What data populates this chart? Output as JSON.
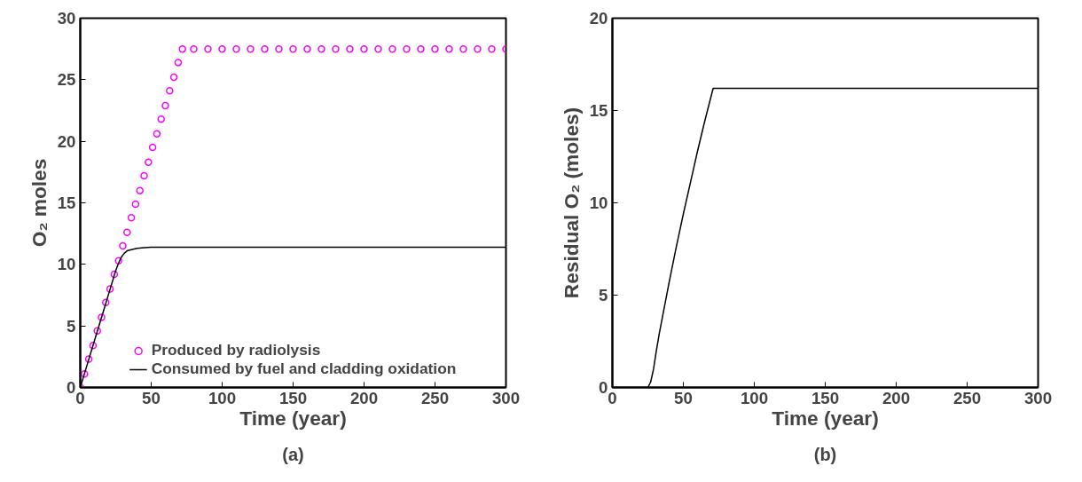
{
  "chart_data": [
    {
      "type": "line",
      "xlabel": "Time (year)",
      "ylabel": "O₂ moles",
      "annotations": [
        "(a)"
      ],
      "xlim": [
        0,
        300
      ],
      "ylim": [
        0,
        30
      ],
      "xticks": [
        0,
        50,
        100,
        150,
        200,
        250,
        300
      ],
      "yticks": [
        0,
        5,
        10,
        15,
        20,
        25,
        30
      ],
      "grid": false,
      "legend": "bottom",
      "series": [
        {
          "name": "Produced by radiolysis",
          "type": "scatter",
          "marker": "circle",
          "color": "#ff00ff",
          "x": [
            0,
            3,
            6,
            9,
            12,
            15,
            18,
            21,
            24,
            27,
            30,
            33,
            36,
            39,
            42,
            45,
            48,
            51,
            54,
            57,
            60,
            63,
            66,
            69,
            72,
            80,
            90,
            100,
            110,
            120,
            130,
            140,
            150,
            160,
            170,
            180,
            190,
            200,
            210,
            220,
            230,
            240,
            250,
            260,
            270,
            280,
            290,
            300
          ],
          "values": [
            0,
            1.1,
            2.3,
            3.4,
            4.6,
            5.7,
            6.9,
            8.0,
            9.2,
            10.3,
            11.5,
            12.6,
            13.8,
            14.9,
            16.0,
            17.2,
            18.3,
            19.5,
            20.6,
            21.8,
            22.9,
            24.1,
            25.2,
            26.4,
            27.5,
            27.5,
            27.5,
            27.5,
            27.5,
            27.5,
            27.5,
            27.5,
            27.5,
            27.5,
            27.5,
            27.5,
            27.5,
            27.5,
            27.5,
            27.5,
            27.5,
            27.5,
            27.5,
            27.5,
            27.5,
            27.5,
            27.5,
            27.5
          ]
        },
        {
          "name": "Consumed by fuel and cladding oxidation",
          "type": "line",
          "color": "#000000",
          "x": [
            0,
            5,
            10,
            15,
            20,
            25,
            27,
            29,
            31,
            33,
            36,
            40,
            45,
            50,
            55,
            100,
            200,
            300
          ],
          "values": [
            0,
            1.9,
            3.8,
            5.7,
            7.6,
            9.5,
            10.1,
            10.6,
            10.9,
            11.1,
            11.2,
            11.3,
            11.35,
            11.4,
            11.4,
            11.4,
            11.4,
            11.4
          ]
        }
      ]
    },
    {
      "type": "line",
      "xlabel": "Time (year)",
      "ylabel": "Residual O₂ (moles)",
      "annotations": [
        "(b)"
      ],
      "xlim": [
        0,
        300
      ],
      "ylim": [
        0,
        20
      ],
      "xticks": [
        0,
        50,
        100,
        150,
        200,
        250,
        300
      ],
      "yticks": [
        0,
        5,
        10,
        15,
        20
      ],
      "grid": false,
      "series": [
        {
          "color": "#000000",
          "x": [
            0,
            10,
            20,
            25,
            27,
            29,
            31,
            33,
            36,
            40,
            45,
            50,
            55,
            60,
            65,
            71,
            100,
            200,
            300
          ],
          "values": [
            0,
            0,
            0,
            0,
            0.3,
            1.0,
            2.0,
            2.9,
            4.1,
            5.7,
            7.6,
            9.4,
            11.1,
            12.8,
            14.4,
            16.2,
            16.2,
            16.2,
            16.2
          ]
        }
      ]
    }
  ]
}
